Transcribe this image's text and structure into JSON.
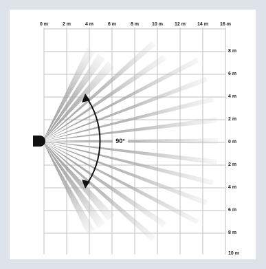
{
  "diagram": {
    "x_labels": [
      "0 m",
      "2 m",
      "4 m",
      "6 m",
      "8 m",
      "10 m",
      "12 m",
      "14 m",
      "16 m"
    ],
    "y_labels": [
      "8 m",
      "6 m",
      "4 m",
      "2 m",
      "0 m",
      "2 m",
      "4 m",
      "6 m",
      "8 m",
      "10 m"
    ],
    "angle_label": "90°",
    "colors": {
      "background": "#dde3e8",
      "panel": "#ffffff",
      "grid": "#bdbdbd",
      "beam": "#a8a8a8",
      "sensor": "#111111",
      "arrow": "#111111"
    },
    "icons": {
      "sensor": "sensor-icon",
      "arrow": "double-headed-arc-arrow"
    }
  }
}
